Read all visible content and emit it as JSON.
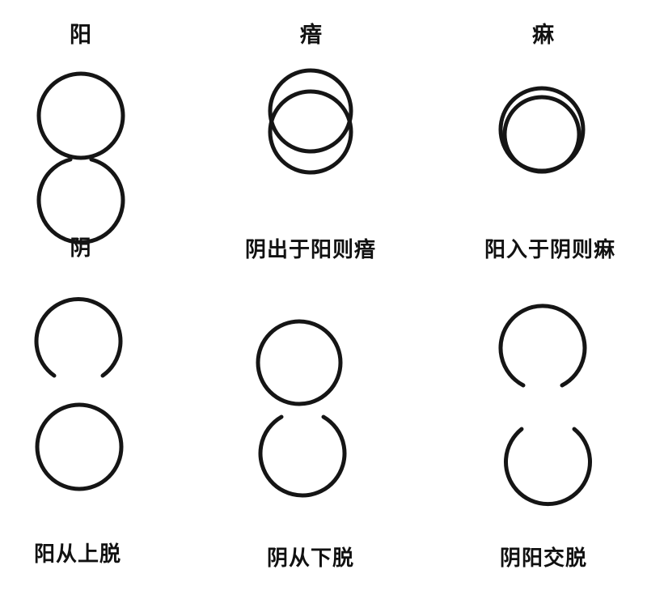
{
  "labels": {
    "top_left": "阳",
    "top_middle": "瘖",
    "top_right": "痳",
    "middle_left": "阴",
    "middle_middle": "阴出于阳则瘖",
    "middle_right": "阳入于阴则痳",
    "bottom_left": "阳从上脱",
    "bottom_middle": "阴从下脱",
    "bottom_right": "阴阳交脱"
  }
}
